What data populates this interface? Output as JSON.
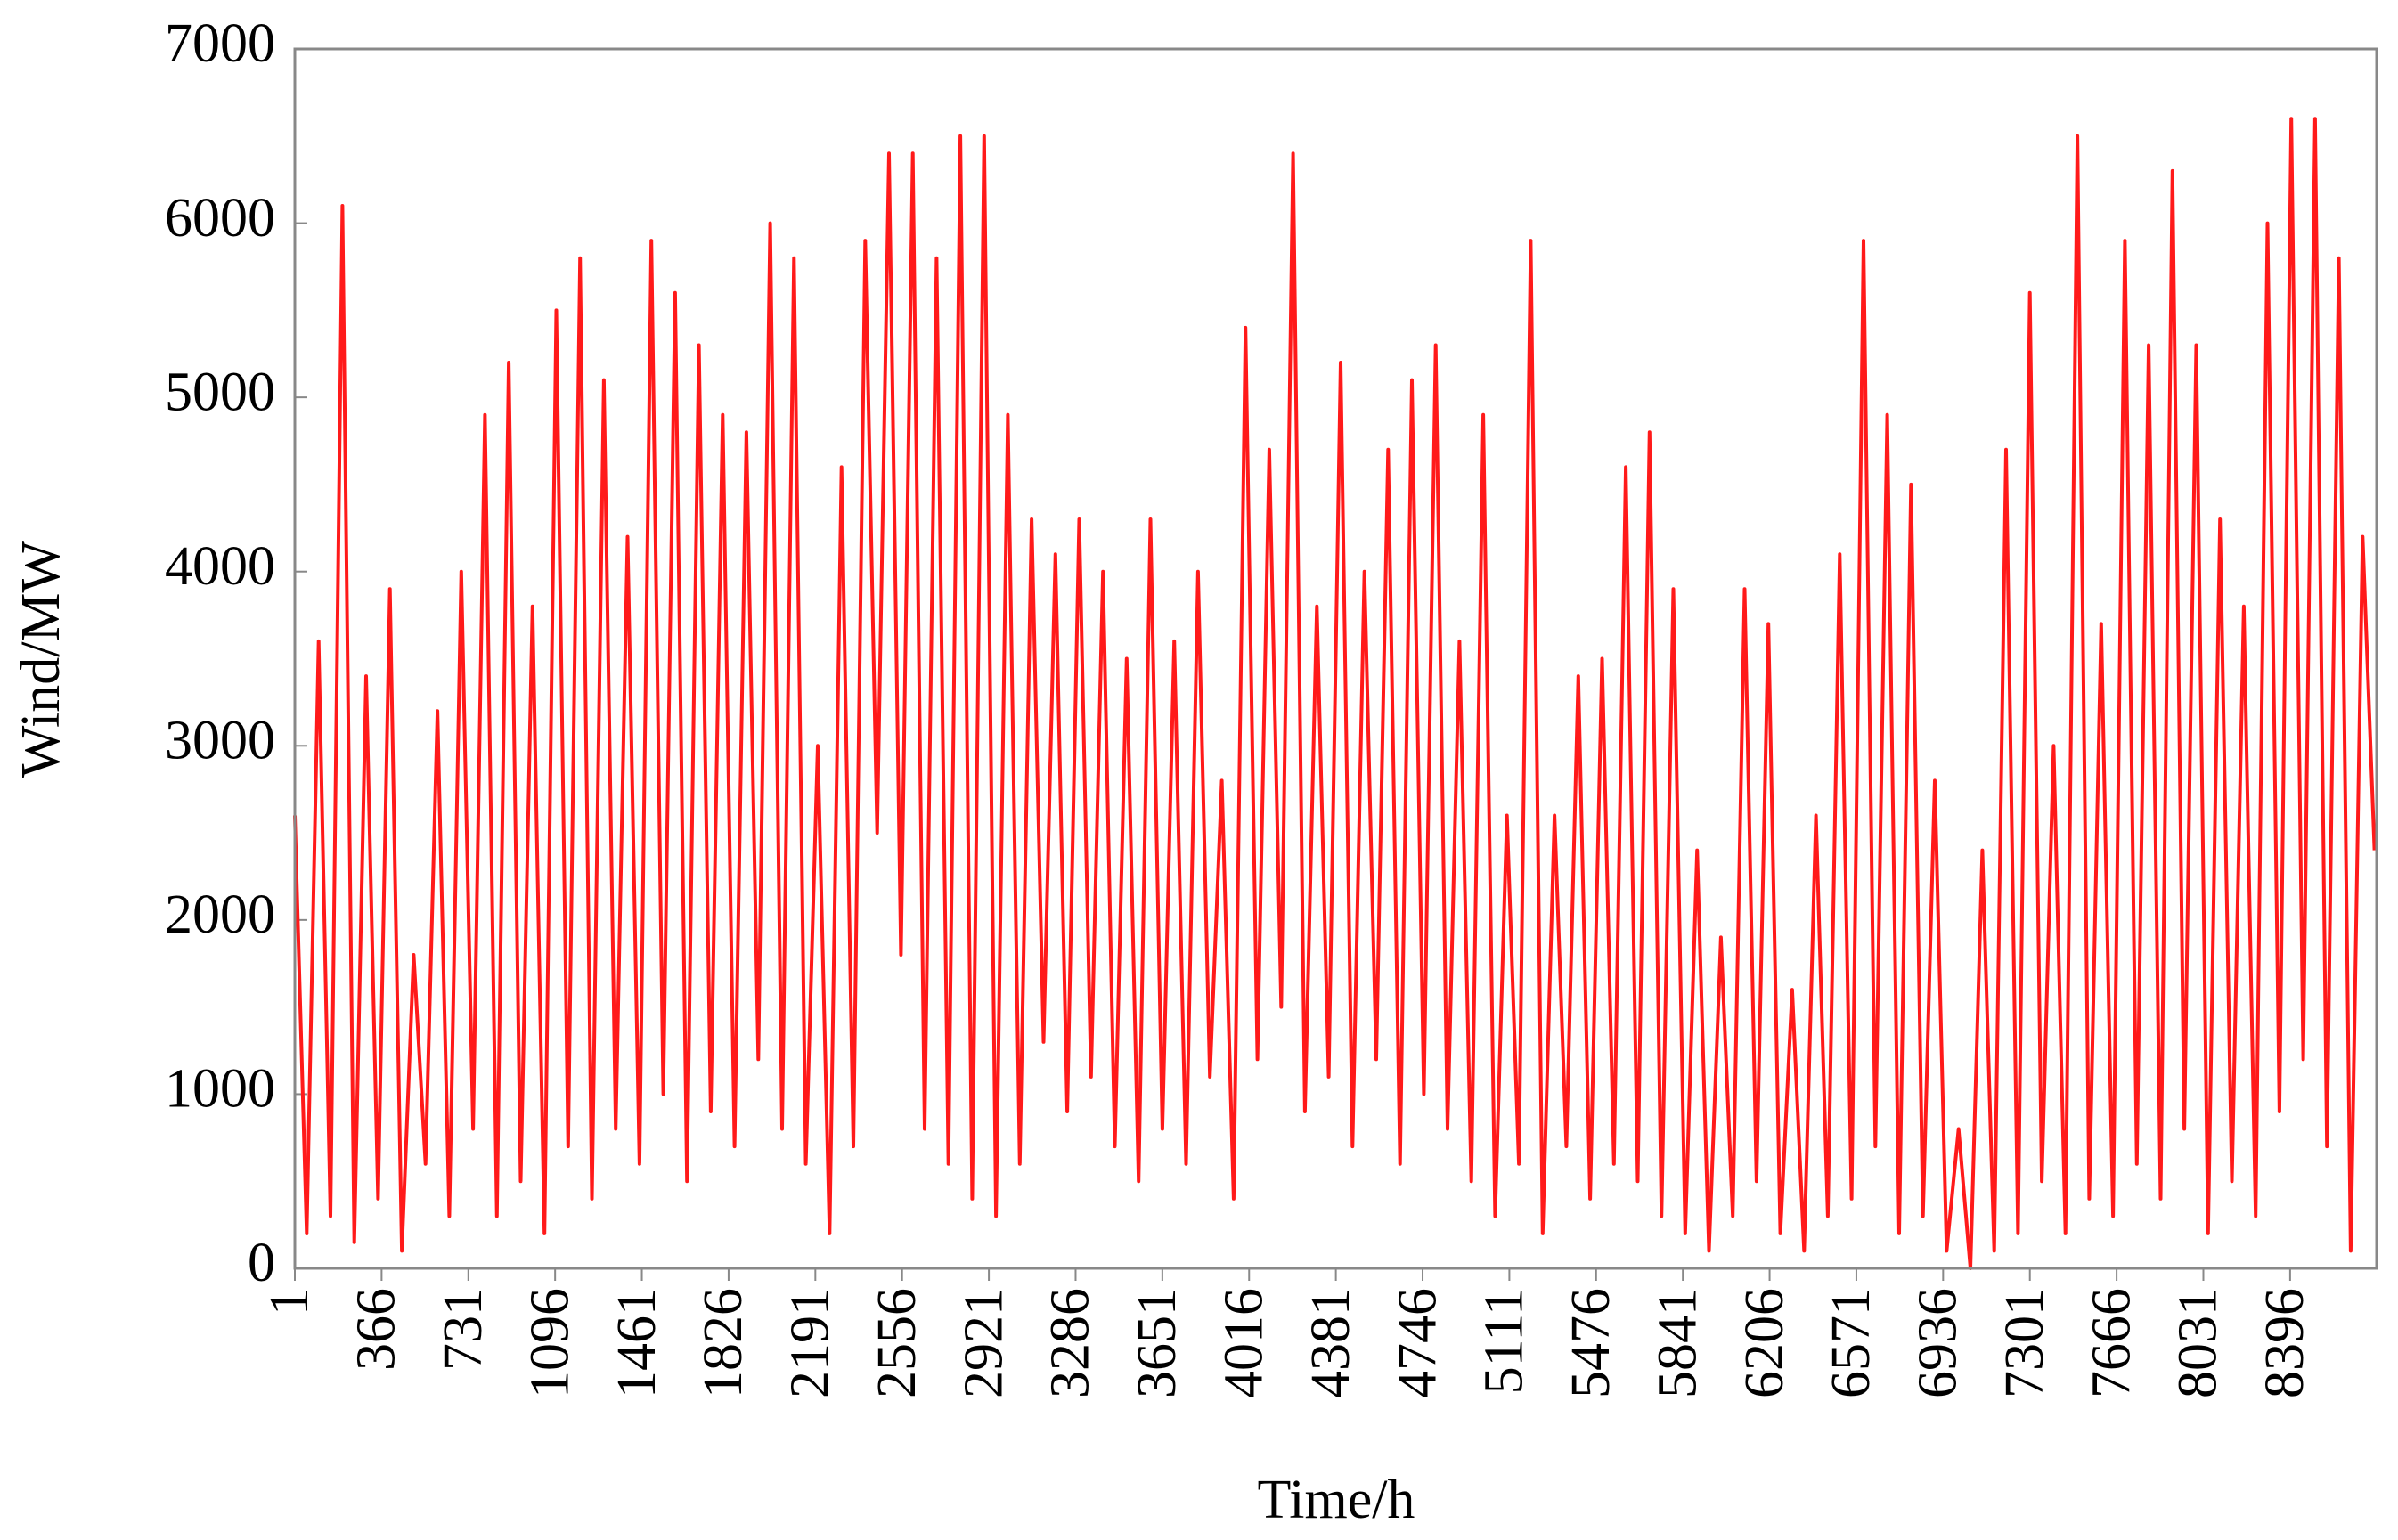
{
  "chart_data": {
    "type": "line",
    "xlabel": "Time/h",
    "ylabel": "Wind/MW",
    "xlim": [
      1,
      8760
    ],
    "ylim": [
      0,
      7000
    ],
    "xticks": [
      1,
      366,
      731,
      1096,
      1461,
      1826,
      2191,
      2556,
      2921,
      3286,
      3651,
      4016,
      4381,
      4746,
      5111,
      5476,
      5841,
      6206,
      6571,
      6936,
      7301,
      7666,
      8031,
      8396
    ],
    "yticks": [
      0,
      1000,
      2000,
      3000,
      4000,
      5000,
      6000,
      7000
    ],
    "grid": false,
    "series": [
      {
        "color": "#ff1a1a",
        "x": [
          1,
          51,
          101,
          151,
          201,
          251,
          301,
          351,
          401,
          451,
          501,
          551,
          601,
          651,
          701,
          751,
          801,
          851,
          901,
          951,
          1001,
          1051,
          1101,
          1151,
          1201,
          1251,
          1301,
          1351,
          1401,
          1451,
          1501,
          1551,
          1601,
          1651,
          1701,
          1751,
          1801,
          1851,
          1901,
          1951,
          2001,
          2051,
          2101,
          2151,
          2201,
          2251,
          2301,
          2351,
          2401,
          2451,
          2501,
          2551,
          2601,
          2651,
          2701,
          2751,
          2801,
          2851,
          2901,
          2951,
          3001,
          3051,
          3101,
          3151,
          3201,
          3251,
          3301,
          3351,
          3401,
          3451,
          3501,
          3551,
          3601,
          3651,
          3701,
          3751,
          3801,
          3851,
          3901,
          3951,
          4001,
          4051,
          4101,
          4151,
          4201,
          4251,
          4301,
          4351,
          4401,
          4451,
          4501,
          4551,
          4601,
          4651,
          4701,
          4751,
          4801,
          4851,
          4901,
          4951,
          5001,
          5051,
          5101,
          5151,
          5201,
          5251,
          5301,
          5351,
          5401,
          5451,
          5501,
          5551,
          5601,
          5651,
          5701,
          5751,
          5801,
          5851,
          5901,
          5951,
          6001,
          6051,
          6101,
          6151,
          6201,
          6251,
          6301,
          6351,
          6401,
          6451,
          6501,
          6551,
          6601,
          6651,
          6701,
          6751,
          6801,
          6851,
          6901,
          6951,
          7001,
          7051,
          7101,
          7151,
          7201,
          7251,
          7301,
          7351,
          7401,
          7451,
          7501,
          7551,
          7601,
          7651,
          7701,
          7751,
          7801,
          7851,
          7901,
          7951,
          8001,
          8051,
          8101,
          8151,
          8201,
          8251,
          8301,
          8351,
          8401,
          8451,
          8501,
          8551,
          8601,
          8651,
          8701,
          8751
        ],
        "values": [
          2600,
          200,
          3600,
          300,
          6100,
          150,
          3400,
          400,
          3900,
          100,
          1800,
          600,
          3200,
          300,
          4000,
          800,
          4900,
          300,
          5200,
          500,
          3800,
          200,
          5500,
          700,
          5800,
          400,
          5100,
          800,
          4200,
          600,
          5900,
          1000,
          5600,
          500,
          5300,
          900,
          4900,
          700,
          4800,
          1200,
          6000,
          800,
          5800,
          600,
          3000,
          200,
          4600,
          700,
          5900,
          2500,
          6400,
          1800,
          6400,
          800,
          5800,
          600,
          6500,
          400,
          6500,
          300,
          4900,
          600,
          4300,
          1300,
          4100,
          900,
          4300,
          1100,
          4000,
          700,
          3500,
          500,
          4300,
          800,
          3600,
          600,
          4000,
          1100,
          2800,
          400,
          5400,
          1200,
          4700,
          1500,
          6400,
          900,
          3800,
          1100,
          5200,
          700,
          4000,
          1200,
          4700,
          600,
          5100,
          1000,
          5300,
          800,
          3600,
          500,
          4900,
          300,
          2600,
          600,
          5900,
          200,
          2600,
          700,
          3400,
          400,
          3500,
          600,
          4600,
          500,
          4800,
          300,
          3900,
          200,
          2400,
          100,
          1900,
          300,
          3900,
          500,
          3700,
          200,
          1600,
          100,
          2600,
          300,
          4100,
          400,
          5900,
          700,
          4900,
          200,
          4500,
          300,
          2800,
          100,
          800,
          0,
          2400,
          100,
          4700,
          200,
          5600,
          500,
          3000,
          200,
          6500,
          400,
          3700,
          300,
          5900,
          600,
          5300,
          400,
          6300,
          800,
          5300,
          200,
          4300,
          500,
          3800,
          300,
          6000,
          900,
          6600,
          1200,
          6600,
          700,
          5800,
          100,
          4200,
          2400
        ]
      }
    ]
  }
}
